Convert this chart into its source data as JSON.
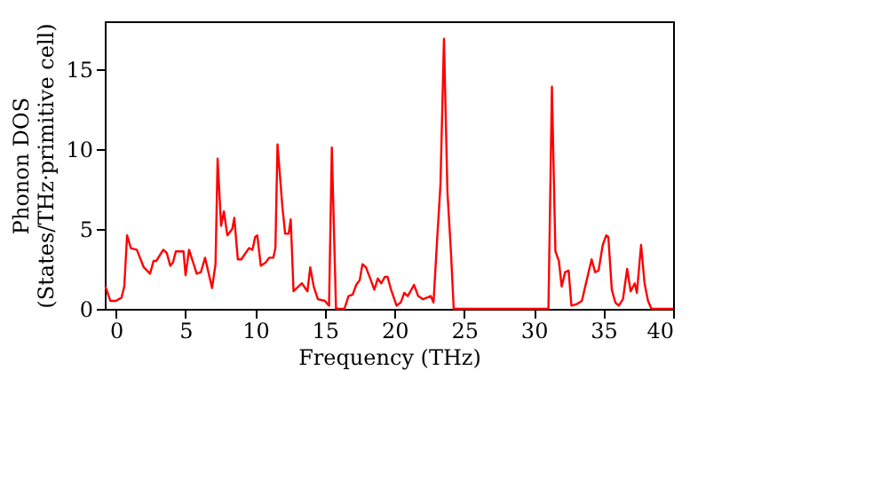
{
  "chart_data": {
    "type": "line",
    "xlabel": "Frequency (THz)",
    "ylabel": "Phonon DOS\n(States/THz·primitive cell)",
    "x": [
      -0.75,
      -0.4,
      0,
      0.4,
      0.6,
      0.8,
      1.07,
      1.5,
      2.0,
      2.45,
      2.7,
      2.9,
      3.4,
      3.65,
      3.9,
      4.1,
      4.3,
      4.85,
      5.0,
      5.25,
      5.8,
      6.1,
      6.4,
      6.9,
      7.15,
      7.3,
      7.55,
      7.75,
      8.0,
      8.35,
      8.5,
      8.75,
      9.0,
      9.55,
      9.8,
      10.0,
      10.15,
      10.4,
      10.75,
      11.0,
      11.3,
      11.45,
      11.6,
      11.95,
      12.15,
      12.4,
      12.55,
      12.75,
      13.35,
      13.75,
      13.95,
      14.2,
      14.5,
      15.0,
      15.3,
      15.5,
      15.8,
      16.4,
      16.7,
      17.0,
      17.25,
      17.5,
      17.7,
      17.95,
      18.3,
      18.55,
      18.8,
      19.05,
      19.3,
      19.5,
      19.75,
      20.15,
      20.45,
      20.7,
      20.95,
      21.4,
      21.7,
      22.05,
      22.6,
      22.8,
      23.05,
      23.3,
      23.55,
      23.8,
      24.05,
      24.25,
      31.05,
      31.3,
      31.55,
      31.8,
      32.0,
      32.25,
      32.5,
      32.7,
      33.1,
      33.45,
      33.8,
      34.15,
      34.4,
      34.65,
      34.95,
      35.2,
      35.35,
      35.6,
      35.85,
      36.1,
      36.4,
      36.7,
      36.95,
      37.25,
      37.4,
      37.7,
      37.95,
      38.2,
      38.45,
      40
    ],
    "series": [
      {
        "color": "#ff0000",
        "values": [
          1.4,
          0.5,
          0.5,
          0.7,
          1.4,
          4.6,
          3.8,
          3.7,
          2.6,
          2.2,
          3.0,
          3.0,
          3.7,
          3.5,
          2.7,
          2.9,
          3.6,
          3.6,
          2.1,
          3.7,
          2.2,
          2.3,
          3.2,
          1.3,
          2.8,
          9.4,
          5.2,
          6.1,
          4.6,
          5.0,
          5.7,
          3.1,
          3.1,
          3.8,
          3.7,
          4.5,
          4.6,
          2.7,
          2.9,
          3.2,
          3.2,
          3.8,
          10.3,
          6.4,
          4.7,
          4.7,
          5.6,
          1.1,
          1.6,
          1.1,
          2.6,
          1.4,
          0.6,
          0.5,
          0.2,
          10.1,
          0,
          0,
          0.8,
          0.9,
          1.5,
          1.8,
          2.8,
          2.6,
          1.8,
          1.2,
          1.9,
          1.6,
          2.0,
          2.0,
          1.2,
          0.2,
          0.4,
          1.0,
          0.8,
          1.5,
          0.8,
          0.6,
          0.8,
          0.4,
          4.2,
          7.8,
          16.9,
          7.3,
          3.6,
          0,
          0,
          13.9,
          3.6,
          3.0,
          1.4,
          2.3,
          2.4,
          0.2,
          0.3,
          0.5,
          1.8,
          3.1,
          2.3,
          2.4,
          4.0,
          4.6,
          4.5,
          1.2,
          0.4,
          0.2,
          0.6,
          2.5,
          1.1,
          1.6,
          1.0,
          4.0,
          1.6,
          0.5,
          0,
          0
        ]
      }
    ],
    "xlim": [
      -0.8,
      40
    ],
    "xticks": [
      0,
      5,
      10,
      15,
      20,
      25,
      30,
      35,
      40
    ],
    "ylim": [
      0,
      18
    ],
    "yticks": [
      0,
      5,
      10,
      15
    ],
    "grid": false,
    "legend": false,
    "marker": "none",
    "line_style": "solid"
  }
}
